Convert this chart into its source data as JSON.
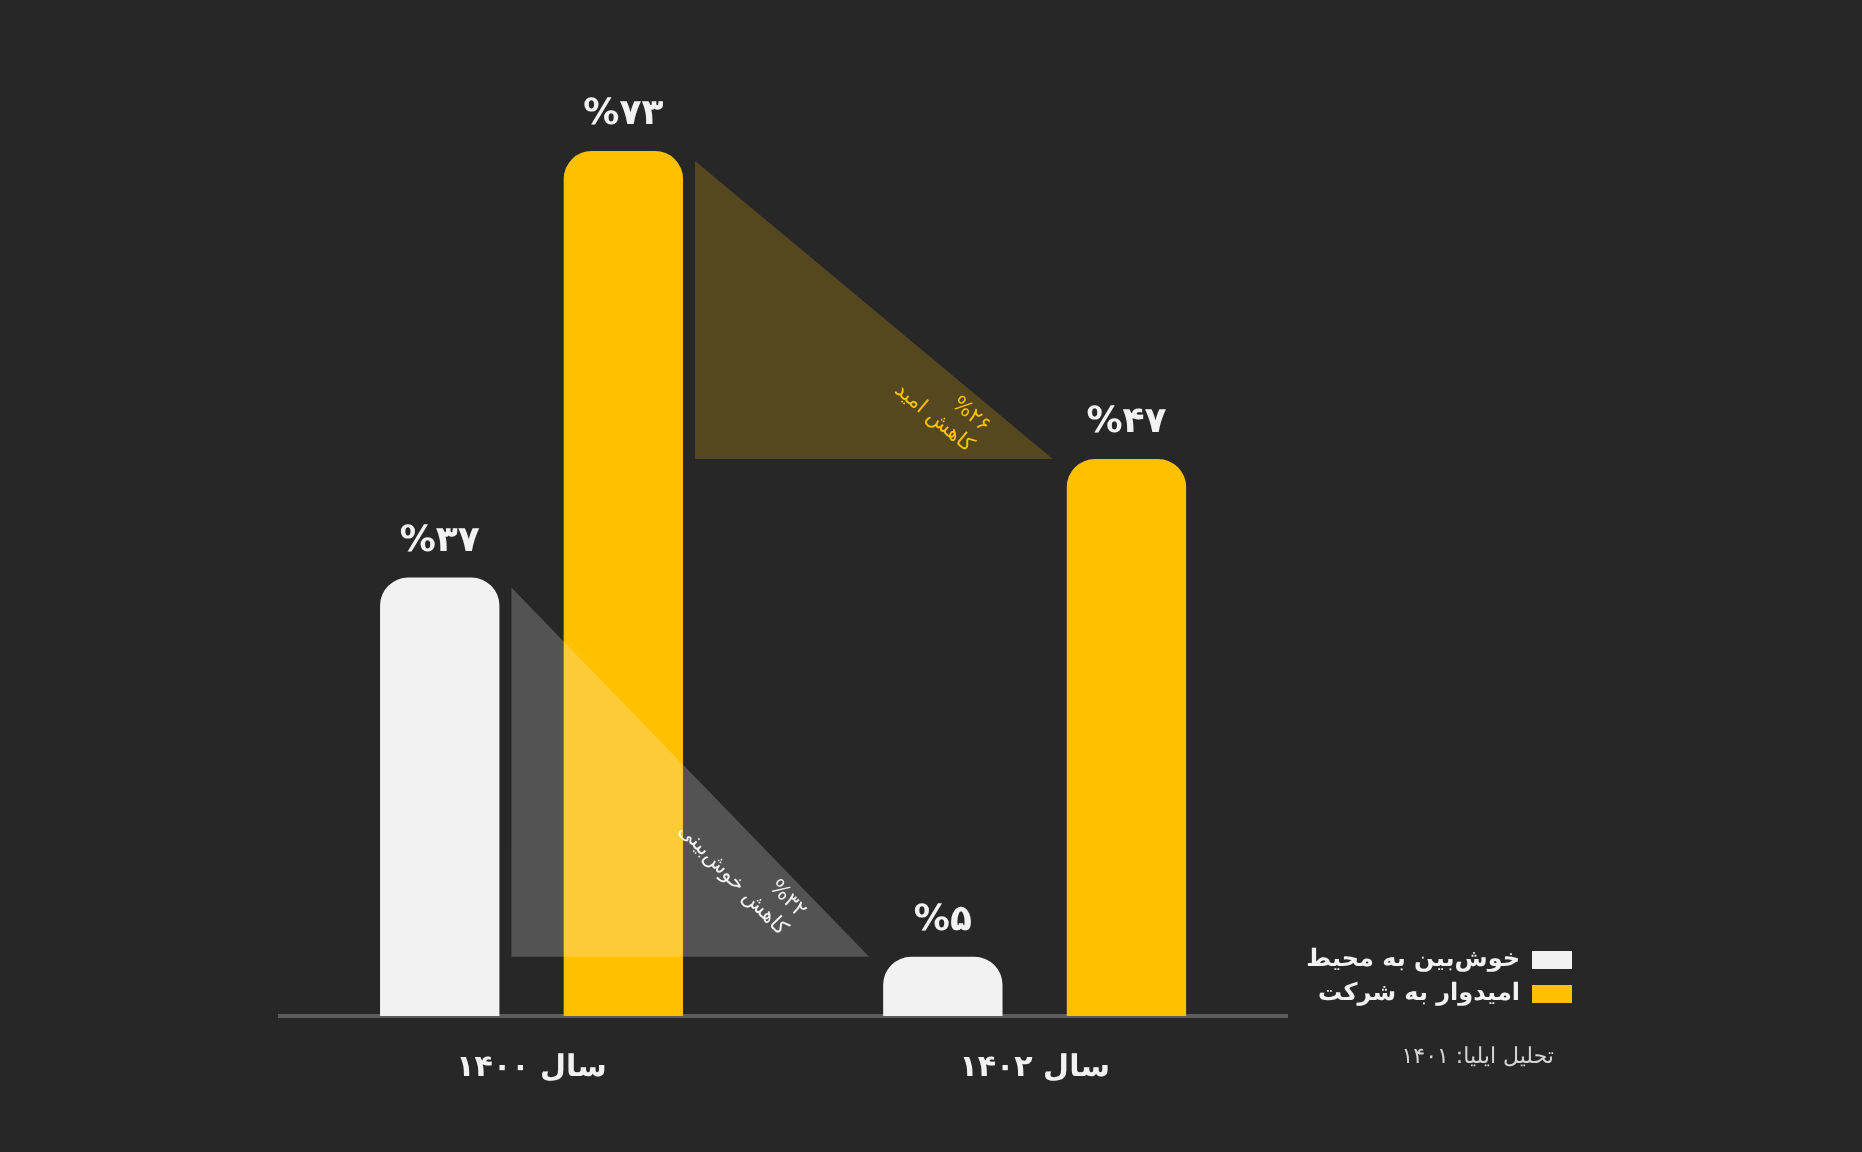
{
  "chart_data": {
    "type": "bar",
    "categories": [
      "سال ۱۴۰۰",
      "سال ۱۴۰۲"
    ],
    "series": [
      {
        "name": "خوش‌بین به محیط",
        "color": "#f2f2f2",
        "values": [
          37,
          5
        ],
        "value_labels": [
          "%۳۷",
          "%۵"
        ]
      },
      {
        "name": "امیدوار به شرکت",
        "color": "#ffc000",
        "values": [
          73,
          47
        ],
        "value_labels": [
          "%۷۳",
          "%۴۷"
        ]
      }
    ],
    "tick_labels": "x",
    "legend": "bottom right",
    "annotations": [
      "%۳۲\nکاهش خوش‌بینی",
      "%۲۶\nکاهش امید",
      "تحلیل ایلیا: ۱۴۰۱"
    ]
  }
}
